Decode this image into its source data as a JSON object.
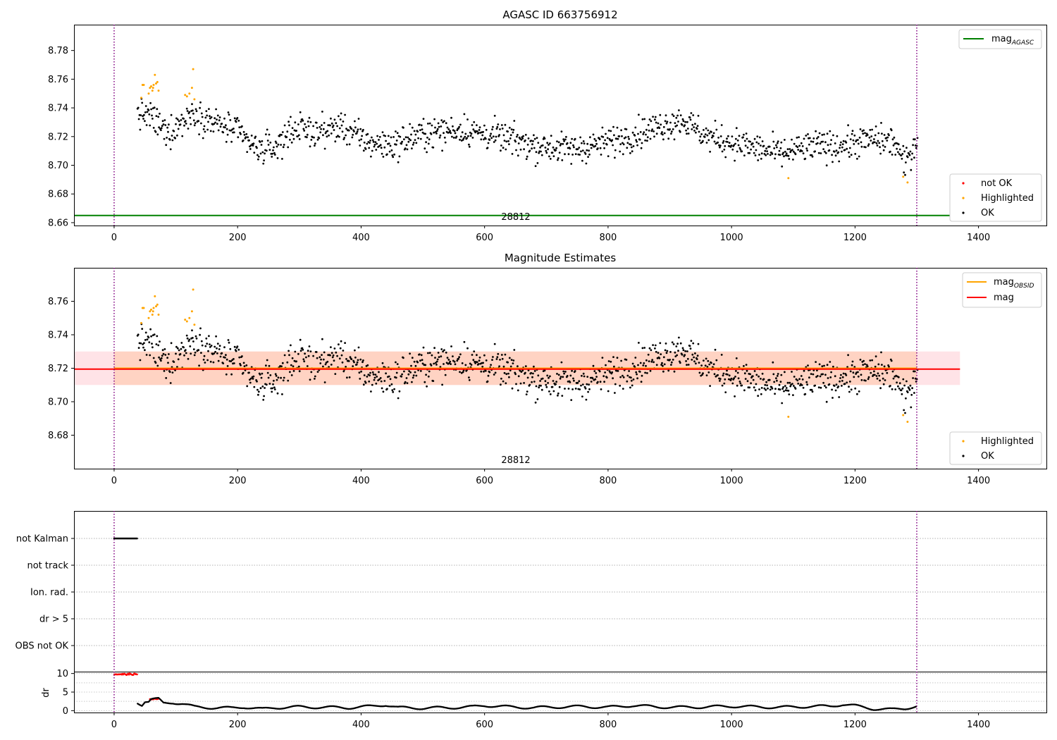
{
  "chart_data": [
    {
      "type": "scatter",
      "title": "AGASC ID 663756912",
      "xlim": [
        -65,
        1510
      ],
      "ylim": [
        8.658,
        8.798
      ],
      "xticks": [
        0,
        200,
        400,
        600,
        800,
        1000,
        1200,
        1400
      ],
      "yticks": [
        8.66,
        8.68,
        8.7,
        8.72,
        8.74,
        8.76,
        8.78
      ],
      "grid": false,
      "vlines": [
        0,
        1300
      ],
      "hline": {
        "name": "mag_AGASC",
        "label_main": "mag",
        "label_sub": "AGASC",
        "value": 8.665,
        "color": "#008000"
      },
      "annotation": {
        "text": "28812",
        "x": 650,
        "y": 8.66
      },
      "legend_top": {
        "placement": "top-right",
        "entries": [
          {
            "label": "mag",
            "sub": "AGASC",
            "color": "#008000"
          }
        ]
      },
      "legend_bottom": {
        "placement": "bottom-right",
        "entries": [
          {
            "label": "not OK",
            "color": "#ff0000"
          },
          {
            "label": "Highlighted",
            "color": "#ffa500"
          },
          {
            "label": "OK",
            "color": "#000000"
          }
        ]
      },
      "series": [
        {
          "label": "not OK",
          "color": "#ff0000",
          "points": []
        },
        {
          "label": "Highlighted",
          "color": "#ffa500",
          "points": [
            [
              44,
              8.747
            ],
            [
              46,
              8.756
            ],
            [
              48,
              8.756
            ],
            [
              56,
              8.75
            ],
            [
              58,
              8.754
            ],
            [
              60,
              8.755
            ],
            [
              62,
              8.752
            ],
            [
              63,
              8.754
            ],
            [
              64,
              8.756
            ],
            [
              66,
              8.763
            ],
            [
              68,
              8.757
            ],
            [
              70,
              8.758
            ],
            [
              72,
              8.752
            ],
            [
              115,
              8.749
            ],
            [
              118,
              8.748
            ],
            [
              122,
              8.75
            ],
            [
              126,
              8.754
            ],
            [
              128,
              8.767
            ],
            [
              130,
              8.746
            ],
            [
              1092,
              8.691
            ],
            [
              1278,
              8.692
            ],
            [
              1285,
              8.688
            ]
          ]
        }
      ]
    },
    {
      "type": "scatter",
      "title": "Magnitude Estimates",
      "xlim": [
        -65,
        1510
      ],
      "ylim": [
        8.66,
        8.78
      ],
      "xticks": [
        0,
        200,
        400,
        600,
        800,
        1000,
        1200,
        1400
      ],
      "yticks": [
        8.68,
        8.7,
        8.72,
        8.74,
        8.76
      ],
      "grid": false,
      "vlines": [
        0,
        1300
      ],
      "bands": [
        {
          "x": [
            -65,
            1370
          ],
          "y": [
            8.71,
            8.73
          ],
          "color": "#ff9aa8",
          "opacity": 0.28
        },
        {
          "x": [
            0,
            1300
          ],
          "y": [
            8.71,
            8.73
          ],
          "color": "#ffb27a",
          "opacity": 0.33
        }
      ],
      "lines": [
        {
          "name": "mag_OBSID",
          "label_main": "mag",
          "label_sub": "OBSID",
          "value": 8.72,
          "x": [
            0,
            1300
          ],
          "color": "#ffa500"
        },
        {
          "name": "mag",
          "label_main": "mag",
          "value": 8.7195,
          "x": [
            -65,
            1370
          ],
          "color": "#ff0000"
        }
      ],
      "annotation": {
        "text": "28812",
        "x": 650,
        "y": 8.6625
      },
      "legend_top": {
        "placement": "top-right",
        "entries": [
          {
            "label": "mag",
            "sub": "OBSID",
            "color": "#ffa500"
          },
          {
            "label": "mag",
            "sub": "",
            "color": "#ff0000"
          }
        ]
      },
      "legend_bottom": {
        "placement": "bottom-right",
        "entries": [
          {
            "label": "Highlighted",
            "color": "#ffa500"
          },
          {
            "label": "OK",
            "color": "#000000"
          }
        ]
      },
      "series": [
        {
          "label": "Highlighted",
          "color": "#ffa500",
          "points": [
            [
              44,
              8.747
            ],
            [
              46,
              8.756
            ],
            [
              48,
              8.756
            ],
            [
              56,
              8.75
            ],
            [
              58,
              8.754
            ],
            [
              60,
              8.755
            ],
            [
              62,
              8.752
            ],
            [
              63,
              8.754
            ],
            [
              64,
              8.756
            ],
            [
              66,
              8.763
            ],
            [
              68,
              8.757
            ],
            [
              70,
              8.758
            ],
            [
              72,
              8.752
            ],
            [
              115,
              8.749
            ],
            [
              118,
              8.748
            ],
            [
              122,
              8.75
            ],
            [
              126,
              8.754
            ],
            [
              128,
              8.767
            ],
            [
              130,
              8.746
            ],
            [
              1092,
              8.691
            ],
            [
              1278,
              8.692
            ],
            [
              1285,
              8.688
            ]
          ]
        }
      ]
    },
    {
      "type": "scatter",
      "title": "",
      "xlim": [
        -65,
        1510
      ],
      "xticks": [
        0,
        200,
        400,
        600,
        800,
        1000,
        1200,
        1400
      ],
      "vlines": [
        0,
        1300
      ],
      "flags": {
        "categories": [
          "not Kalman",
          "not track",
          "Ion. rad.",
          "dr > 5",
          "OBS not OK"
        ],
        "points": [
          {
            "category": "not Kalman",
            "x_range": [
              0,
              38
            ],
            "color": "#000000"
          }
        ]
      },
      "dr": {
        "ylabel": "dr",
        "ylim": [
          -0.5,
          10.5
        ],
        "yticks": [
          0,
          5,
          10
        ],
        "red_runs": [
          {
            "x_range": [
              0,
              38
            ],
            "y": 9.8
          },
          {
            "x_range": [
              58,
              72
            ],
            "y": 3.1
          }
        ],
        "segments": [
          [
            [
              38,
              2.2
            ],
            [
              45,
              1.6
            ],
            [
              50,
              2.5
            ],
            [
              56,
              2.4
            ],
            [
              60,
              3.0
            ],
            [
              72,
              3.1
            ],
            [
              80,
              2.0
            ],
            [
              95,
              2.2
            ],
            [
              110,
              1.9
            ],
            [
              130,
              1.0
            ],
            [
              160,
              0.8
            ],
            [
              190,
              0.7
            ],
            [
              210,
              1.0
            ],
            [
              240,
              0.4
            ],
            [
              260,
              0.8
            ],
            [
              300,
              1.0
            ],
            [
              340,
              0.9
            ],
            [
              380,
              0.8
            ],
            [
              420,
              1.2
            ],
            [
              440,
              1.6
            ],
            [
              460,
              0.8
            ],
            [
              500,
              0.7
            ],
            [
              540,
              0.8
            ],
            [
              580,
              1.0
            ],
            [
              600,
              1.4
            ],
            [
              640,
              1.0
            ],
            [
              680,
              0.8
            ],
            [
              720,
              1.0
            ],
            [
              760,
              1.1
            ],
            [
              800,
              0.9
            ],
            [
              840,
              1.4
            ],
            [
              880,
              1.0
            ],
            [
              920,
              0.9
            ],
            [
              960,
              1.0
            ],
            [
              1000,
              1.2
            ],
            [
              1040,
              1.0
            ],
            [
              1080,
              0.9
            ],
            [
              1120,
              1.1
            ],
            [
              1160,
              1.2
            ],
            [
              1180,
              1.7
            ],
            [
              1200,
              1.3
            ],
            [
              1230,
              0.5
            ],
            [
              1260,
              0.3
            ],
            [
              1280,
              0.6
            ],
            [
              1300,
              1.2
            ]
          ]
        ]
      }
    }
  ]
}
